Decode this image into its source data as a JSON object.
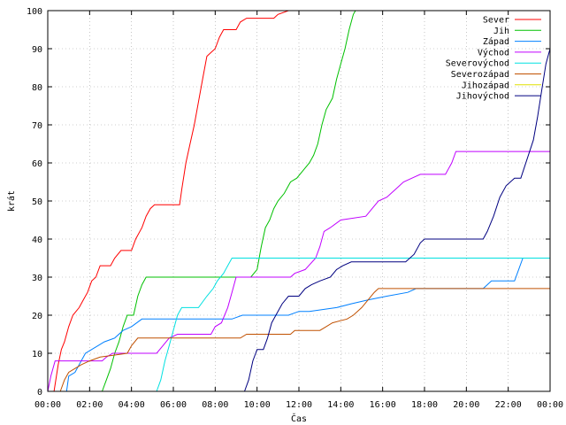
{
  "chart_data": {
    "type": "line",
    "xlabel": "Čas",
    "ylabel": "krát",
    "xlim": [
      0,
      24
    ],
    "ylim": [
      0,
      100
    ],
    "grid": true,
    "legend_position": "top-right",
    "x_ticks": [
      {
        "value": 0,
        "label": "00:00"
      },
      {
        "value": 2,
        "label": "02:00"
      },
      {
        "value": 4,
        "label": "04:00"
      },
      {
        "value": 6,
        "label": "06:00"
      },
      {
        "value": 8,
        "label": "08:00"
      },
      {
        "value": 10,
        "label": "10:00"
      },
      {
        "value": 12,
        "label": "12:00"
      },
      {
        "value": 14,
        "label": "14:00"
      },
      {
        "value": 16,
        "label": "16:00"
      },
      {
        "value": 18,
        "label": "18:00"
      },
      {
        "value": 20,
        "label": "20:00"
      },
      {
        "value": 22,
        "label": "22:00"
      },
      {
        "value": 24,
        "label": "00:00"
      }
    ],
    "y_ticks": [
      {
        "value": 0,
        "label": "0"
      },
      {
        "value": 10,
        "label": "10"
      },
      {
        "value": 20,
        "label": "20"
      },
      {
        "value": 30,
        "label": "30"
      },
      {
        "value": 40,
        "label": "40"
      },
      {
        "value": 50,
        "label": "50"
      },
      {
        "value": 60,
        "label": "60"
      },
      {
        "value": 70,
        "label": "70"
      },
      {
        "value": 80,
        "label": "80"
      },
      {
        "value": 90,
        "label": "90"
      },
      {
        "value": 100,
        "label": "100"
      }
    ],
    "series": [
      {
        "name": "Sever",
        "color": "#ff0000",
        "points": [
          [
            0.3,
            0
          ],
          [
            0.5,
            7
          ],
          [
            0.65,
            11
          ],
          [
            0.8,
            13
          ],
          [
            1.0,
            17
          ],
          [
            1.2,
            20
          ],
          [
            1.5,
            22
          ],
          [
            1.7,
            24
          ],
          [
            1.9,
            26
          ],
          [
            2.1,
            29
          ],
          [
            2.3,
            30
          ],
          [
            2.5,
            33
          ],
          [
            3.0,
            33
          ],
          [
            3.2,
            35
          ],
          [
            3.5,
            37
          ],
          [
            4.0,
            37
          ],
          [
            4.2,
            40
          ],
          [
            4.5,
            43
          ],
          [
            4.7,
            46
          ],
          [
            4.9,
            48
          ],
          [
            5.1,
            49
          ],
          [
            6.3,
            49
          ],
          [
            6.4,
            53
          ],
          [
            6.6,
            60
          ],
          [
            6.8,
            65
          ],
          [
            7.0,
            70
          ],
          [
            7.2,
            76
          ],
          [
            7.4,
            82
          ],
          [
            7.6,
            88
          ],
          [
            7.8,
            89
          ],
          [
            8.0,
            90
          ],
          [
            8.2,
            93
          ],
          [
            8.4,
            95
          ],
          [
            9.0,
            95
          ],
          [
            9.2,
            97
          ],
          [
            9.5,
            98
          ],
          [
            10.8,
            98
          ],
          [
            11.0,
            99
          ],
          [
            11.5,
            100
          ],
          [
            11.6,
            100
          ]
        ]
      },
      {
        "name": "Jih",
        "color": "#00c000",
        "points": [
          [
            2.6,
            0
          ],
          [
            2.8,
            3
          ],
          [
            3.0,
            6
          ],
          [
            3.2,
            10
          ],
          [
            3.4,
            13
          ],
          [
            3.6,
            17
          ],
          [
            3.8,
            20
          ],
          [
            4.1,
            20
          ],
          [
            4.3,
            25
          ],
          [
            4.5,
            28
          ],
          [
            4.7,
            30
          ],
          [
            9.7,
            30
          ],
          [
            10.0,
            32
          ],
          [
            10.2,
            38
          ],
          [
            10.4,
            43
          ],
          [
            10.6,
            45
          ],
          [
            10.8,
            48
          ],
          [
            11.0,
            50
          ],
          [
            11.3,
            52
          ],
          [
            11.6,
            55
          ],
          [
            11.9,
            56
          ],
          [
            12.2,
            58
          ],
          [
            12.5,
            60
          ],
          [
            12.7,
            62
          ],
          [
            12.9,
            65
          ],
          [
            13.1,
            70
          ],
          [
            13.3,
            74
          ],
          [
            13.6,
            77
          ],
          [
            13.8,
            82
          ],
          [
            14.0,
            86
          ],
          [
            14.2,
            90
          ],
          [
            14.4,
            95
          ],
          [
            14.6,
            99
          ],
          [
            14.7,
            100
          ]
        ]
      },
      {
        "name": "Západ",
        "color": "#0080ff",
        "points": [
          [
            0.9,
            0
          ],
          [
            1.0,
            4
          ],
          [
            1.3,
            5
          ],
          [
            1.5,
            7
          ],
          [
            1.8,
            10
          ],
          [
            2.1,
            11
          ],
          [
            2.4,
            12
          ],
          [
            2.7,
            13
          ],
          [
            3.2,
            14
          ],
          [
            3.6,
            16
          ],
          [
            4.0,
            17
          ],
          [
            4.5,
            19
          ],
          [
            8.8,
            19
          ],
          [
            9.3,
            20
          ],
          [
            11.5,
            20
          ],
          [
            12.0,
            21
          ],
          [
            12.5,
            21
          ],
          [
            13.8,
            22
          ],
          [
            14.5,
            23
          ],
          [
            15.3,
            24
          ],
          [
            16.2,
            25
          ],
          [
            17.2,
            26
          ],
          [
            17.6,
            27
          ],
          [
            20.8,
            27
          ],
          [
            21.0,
            28
          ],
          [
            21.2,
            29
          ],
          [
            22.3,
            29
          ],
          [
            22.5,
            32
          ],
          [
            22.7,
            35
          ],
          [
            22.8,
            35
          ]
        ]
      },
      {
        "name": "Východ",
        "color": "#c000ff",
        "points": [
          [
            0,
            0
          ],
          [
            0.15,
            4
          ],
          [
            0.35,
            8
          ],
          [
            2.6,
            8
          ],
          [
            2.8,
            9
          ],
          [
            3.1,
            10
          ],
          [
            5.2,
            10
          ],
          [
            5.5,
            12
          ],
          [
            5.8,
            14
          ],
          [
            6.2,
            15
          ],
          [
            7.8,
            15
          ],
          [
            8.0,
            17
          ],
          [
            8.3,
            18
          ],
          [
            8.6,
            22
          ],
          [
            8.8,
            26
          ],
          [
            9.0,
            30
          ],
          [
            11.6,
            30
          ],
          [
            11.8,
            31
          ],
          [
            12.3,
            32
          ],
          [
            12.8,
            35
          ],
          [
            13.0,
            38
          ],
          [
            13.2,
            42
          ],
          [
            13.5,
            43
          ],
          [
            14.0,
            45
          ],
          [
            15.2,
            46
          ],
          [
            15.5,
            48
          ],
          [
            15.8,
            50
          ],
          [
            16.2,
            51
          ],
          [
            16.6,
            53
          ],
          [
            17.0,
            55
          ],
          [
            17.4,
            56
          ],
          [
            17.8,
            57
          ],
          [
            19.0,
            57
          ],
          [
            19.3,
            60
          ],
          [
            19.5,
            63
          ],
          [
            24,
            63
          ]
        ]
      },
      {
        "name": "Severovýchod",
        "color": "#00e0e0",
        "points": [
          [
            5.2,
            0
          ],
          [
            5.4,
            3
          ],
          [
            5.6,
            8
          ],
          [
            5.8,
            12
          ],
          [
            6.0,
            16
          ],
          [
            6.2,
            20
          ],
          [
            6.4,
            22
          ],
          [
            7.2,
            22
          ],
          [
            7.6,
            25
          ],
          [
            7.9,
            27
          ],
          [
            8.1,
            29
          ],
          [
            8.4,
            31
          ],
          [
            8.6,
            33
          ],
          [
            8.8,
            35
          ],
          [
            24,
            35
          ]
        ]
      },
      {
        "name": "Severozápad",
        "color": "#c05000",
        "points": [
          [
            0.6,
            0
          ],
          [
            0.8,
            3
          ],
          [
            1.0,
            5
          ],
          [
            1.3,
            6
          ],
          [
            1.6,
            7
          ],
          [
            2.0,
            8
          ],
          [
            2.5,
            9
          ],
          [
            3.8,
            10
          ],
          [
            4.0,
            12
          ],
          [
            4.3,
            14
          ],
          [
            9.2,
            14
          ],
          [
            9.5,
            15
          ],
          [
            11.6,
            15
          ],
          [
            11.8,
            16
          ],
          [
            13.0,
            16
          ],
          [
            13.3,
            17
          ],
          [
            13.6,
            18
          ],
          [
            14.3,
            19
          ],
          [
            14.6,
            20
          ],
          [
            15.0,
            22
          ],
          [
            15.3,
            24
          ],
          [
            15.6,
            26
          ],
          [
            15.8,
            27
          ],
          [
            24,
            27
          ]
        ]
      },
      {
        "name": "Jihozápad",
        "color": "#e0e000",
        "points": []
      },
      {
        "name": "Jihovýchod",
        "color": "#000080",
        "points": [
          [
            9.4,
            0
          ],
          [
            9.6,
            3
          ],
          [
            9.8,
            8
          ],
          [
            10.0,
            11
          ],
          [
            10.3,
            11
          ],
          [
            10.5,
            14
          ],
          [
            10.7,
            18
          ],
          [
            11.0,
            21
          ],
          [
            11.2,
            23
          ],
          [
            11.5,
            25
          ],
          [
            12.0,
            25
          ],
          [
            12.3,
            27
          ],
          [
            12.6,
            28
          ],
          [
            13.0,
            29
          ],
          [
            13.5,
            30
          ],
          [
            13.8,
            32
          ],
          [
            14.1,
            33
          ],
          [
            14.5,
            34
          ],
          [
            17.1,
            34
          ],
          [
            17.5,
            36
          ],
          [
            17.8,
            39
          ],
          [
            18.0,
            40
          ],
          [
            20.8,
            40
          ],
          [
            21.0,
            42
          ],
          [
            21.3,
            46
          ],
          [
            21.6,
            51
          ],
          [
            21.9,
            54
          ],
          [
            22.3,
            56
          ],
          [
            22.6,
            56
          ],
          [
            22.9,
            61
          ],
          [
            23.2,
            66
          ],
          [
            23.4,
            72
          ],
          [
            23.6,
            79
          ],
          [
            23.8,
            86
          ],
          [
            24.0,
            90
          ]
        ]
      }
    ]
  }
}
